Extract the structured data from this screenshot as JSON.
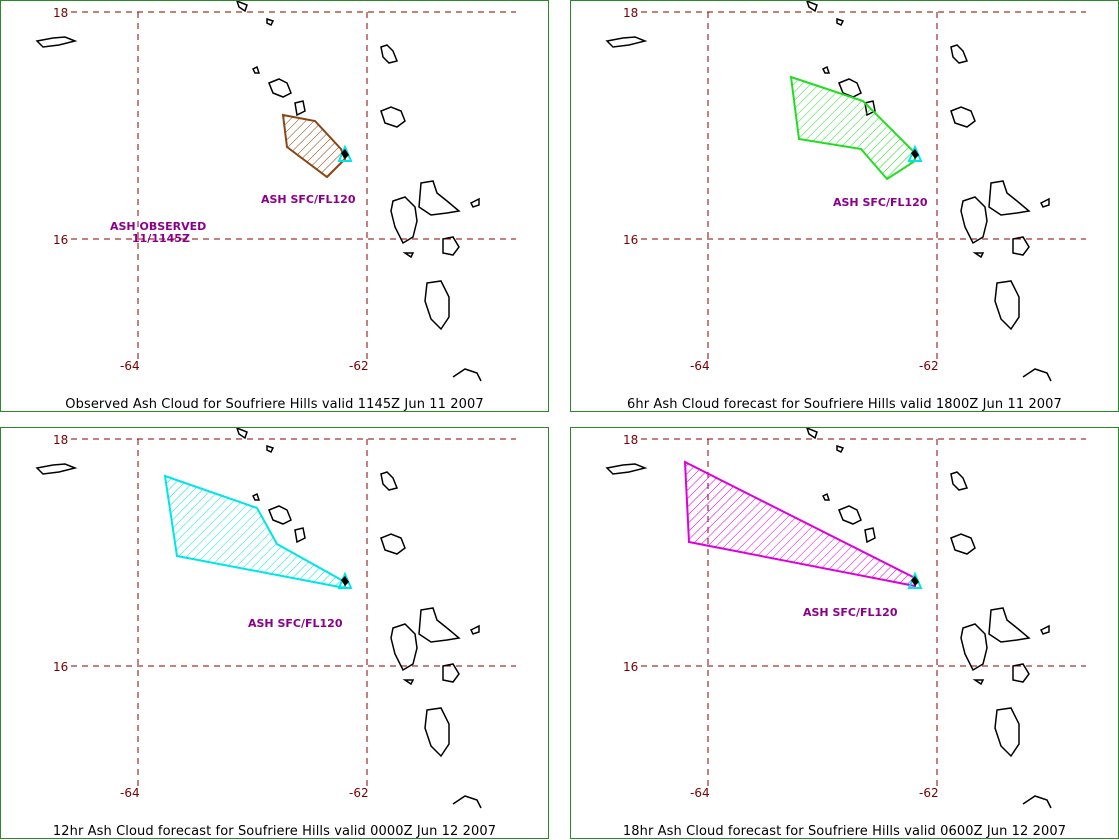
{
  "labels": {
    "lat_top": "18",
    "lat_mid": "16",
    "lon_left": "-64",
    "lon_right": "-62"
  },
  "colors": {
    "grid": "#8b0000",
    "tick": "#7a0000",
    "label": "#8b008b",
    "border": "#2a8a2a",
    "volcano": "#00e5e5"
  },
  "panels": [
    {
      "caption": "Observed Ash Cloud for Soufriere  Hills valid 1145Z Jun 11 2007",
      "ash_label": "ASH SFC/FL120",
      "observed_label": "ASH OBSERVED",
      "observed_time": "11/1145Z",
      "polygon_color": "#8b4513",
      "polygon_fill_pattern": "hatch"
    },
    {
      "caption": "6hr Ash Cloud forecast for Soufriere  Hills valid 1800Z Jun 11 2007",
      "ash_label": "ASH SFC/FL120",
      "polygon_color": "#22dd22",
      "polygon_fill_pattern": "hatch"
    },
    {
      "caption": "12hr Ash Cloud forecast for Soufriere  Hills valid 0000Z Jun 12 2007",
      "ash_label": "ASH SFC/FL120",
      "polygon_color": "#00e5e5",
      "polygon_fill_pattern": "hatch"
    },
    {
      "caption": "18hr Ash Cloud forecast for Soufriere  Hills valid 0600Z Jun 12 2007",
      "ash_label": "ASH SFC/FL120",
      "polygon_color": "#dd00dd",
      "polygon_fill_pattern": "hatch"
    }
  ]
}
